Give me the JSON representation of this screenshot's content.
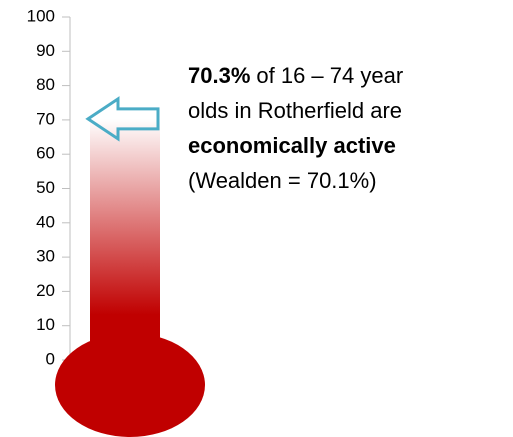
{
  "chart_data": {
    "type": "thermometer",
    "values": [
      70.3
    ],
    "value_labels": [
      "70.3%"
    ],
    "color": "#c00000",
    "pointer_color": "#4bacc6",
    "ylim": [
      0,
      100
    ],
    "yticks": [
      0,
      10,
      20,
      30,
      40,
      50,
      60,
      70,
      80,
      90,
      100
    ],
    "annotation": [
      "of 16 – 74 year",
      "olds in Rotherfield are",
      "economically active",
      "(Wealden = 70.1%)"
    ]
  }
}
